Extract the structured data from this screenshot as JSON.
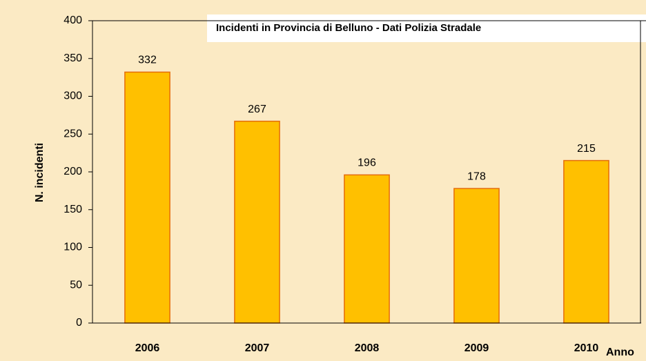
{
  "chart_data": {
    "type": "bar",
    "title": "Incidenti in Provincia di Belluno - Dati Polizia Stradale",
    "x_label": "Anno",
    "y_label": "N. incidenti",
    "categories": [
      "2006",
      "2007",
      "2008",
      "2009",
      "2010"
    ],
    "values": [
      332,
      267,
      196,
      178,
      215
    ],
    "color": "#ffc000",
    "ylim": [
      0,
      400
    ],
    "yticks": [
      0,
      50,
      100,
      150,
      200,
      250,
      300,
      350,
      400
    ],
    "grid": false
  }
}
